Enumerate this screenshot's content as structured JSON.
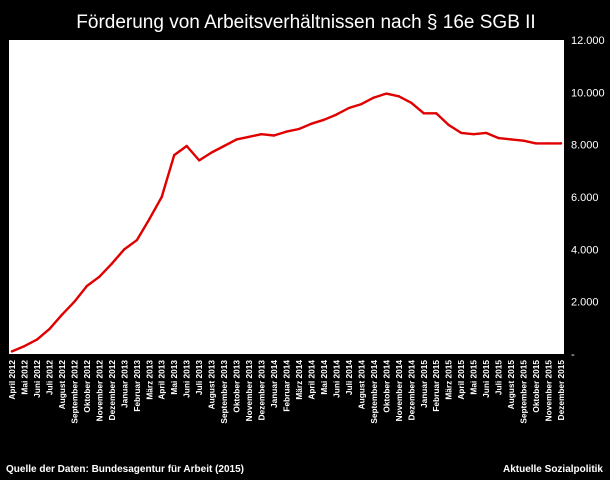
{
  "chart_data": {
    "type": "line",
    "title": "Förderung von Arbeitsverhältnissen nach § 16e SGB II",
    "xlabel": "",
    "ylabel": "",
    "ylim": [
      0,
      12000
    ],
    "yticks": [
      "-",
      "2.000",
      "4.000",
      "6.000",
      "8.000",
      "10.000",
      "12.000"
    ],
    "grid": false,
    "line_color": "#e00000",
    "categories": [
      "April 2012",
      "Mai 2012",
      "Juni 2012",
      "Juli 2012",
      "August 2012",
      "September 2012",
      "Oktober 2012",
      "November 2012",
      "Dezember 2012",
      "Januar 2013",
      "Februar 2013",
      "März 2013",
      "April 2013",
      "Mai 2013",
      "Juni 2013",
      "Juli 2013",
      "August 2013",
      "September 2013",
      "Oktober 2013",
      "November 2013",
      "Dezember 2013",
      "Januar 2014",
      "Februar 2014",
      "März 2014",
      "April 2014",
      "Mai 2014",
      "Juni 2014",
      "Juli 2014",
      "August 2014",
      "September 2014",
      "Oktober 2014",
      "November 2014",
      "Dezember 2014",
      "Januar 2015",
      "Februar 2015",
      "März 2015",
      "April 2015",
      "Mai 2015",
      "Juni 2015",
      "Juli 2015",
      "August 2015",
      "September 2015",
      "Oktober 2015",
      "November 2015",
      "Dezember 2015"
    ],
    "series": [
      {
        "values": [
          100,
          300,
          550,
          950,
          1500,
          2000,
          2600,
          2950,
          3450,
          4000,
          4350,
          5150,
          6000,
          7600,
          7950,
          7400,
          7700,
          7950,
          8200,
          8300,
          8400,
          8350,
          8500,
          8600,
          8800,
          8950,
          9150,
          9400,
          9550,
          9800,
          9950,
          9850,
          9600,
          9200,
          9200,
          8750,
          8450,
          8400,
          8450,
          8250,
          8200,
          8150,
          8050,
          8050,
          8050
        ]
      }
    ]
  },
  "footer": {
    "source": "Quelle der Daten: Bundesagentur für Arbeit (2015)",
    "brand": "Aktuelle Sozialpolitik"
  }
}
